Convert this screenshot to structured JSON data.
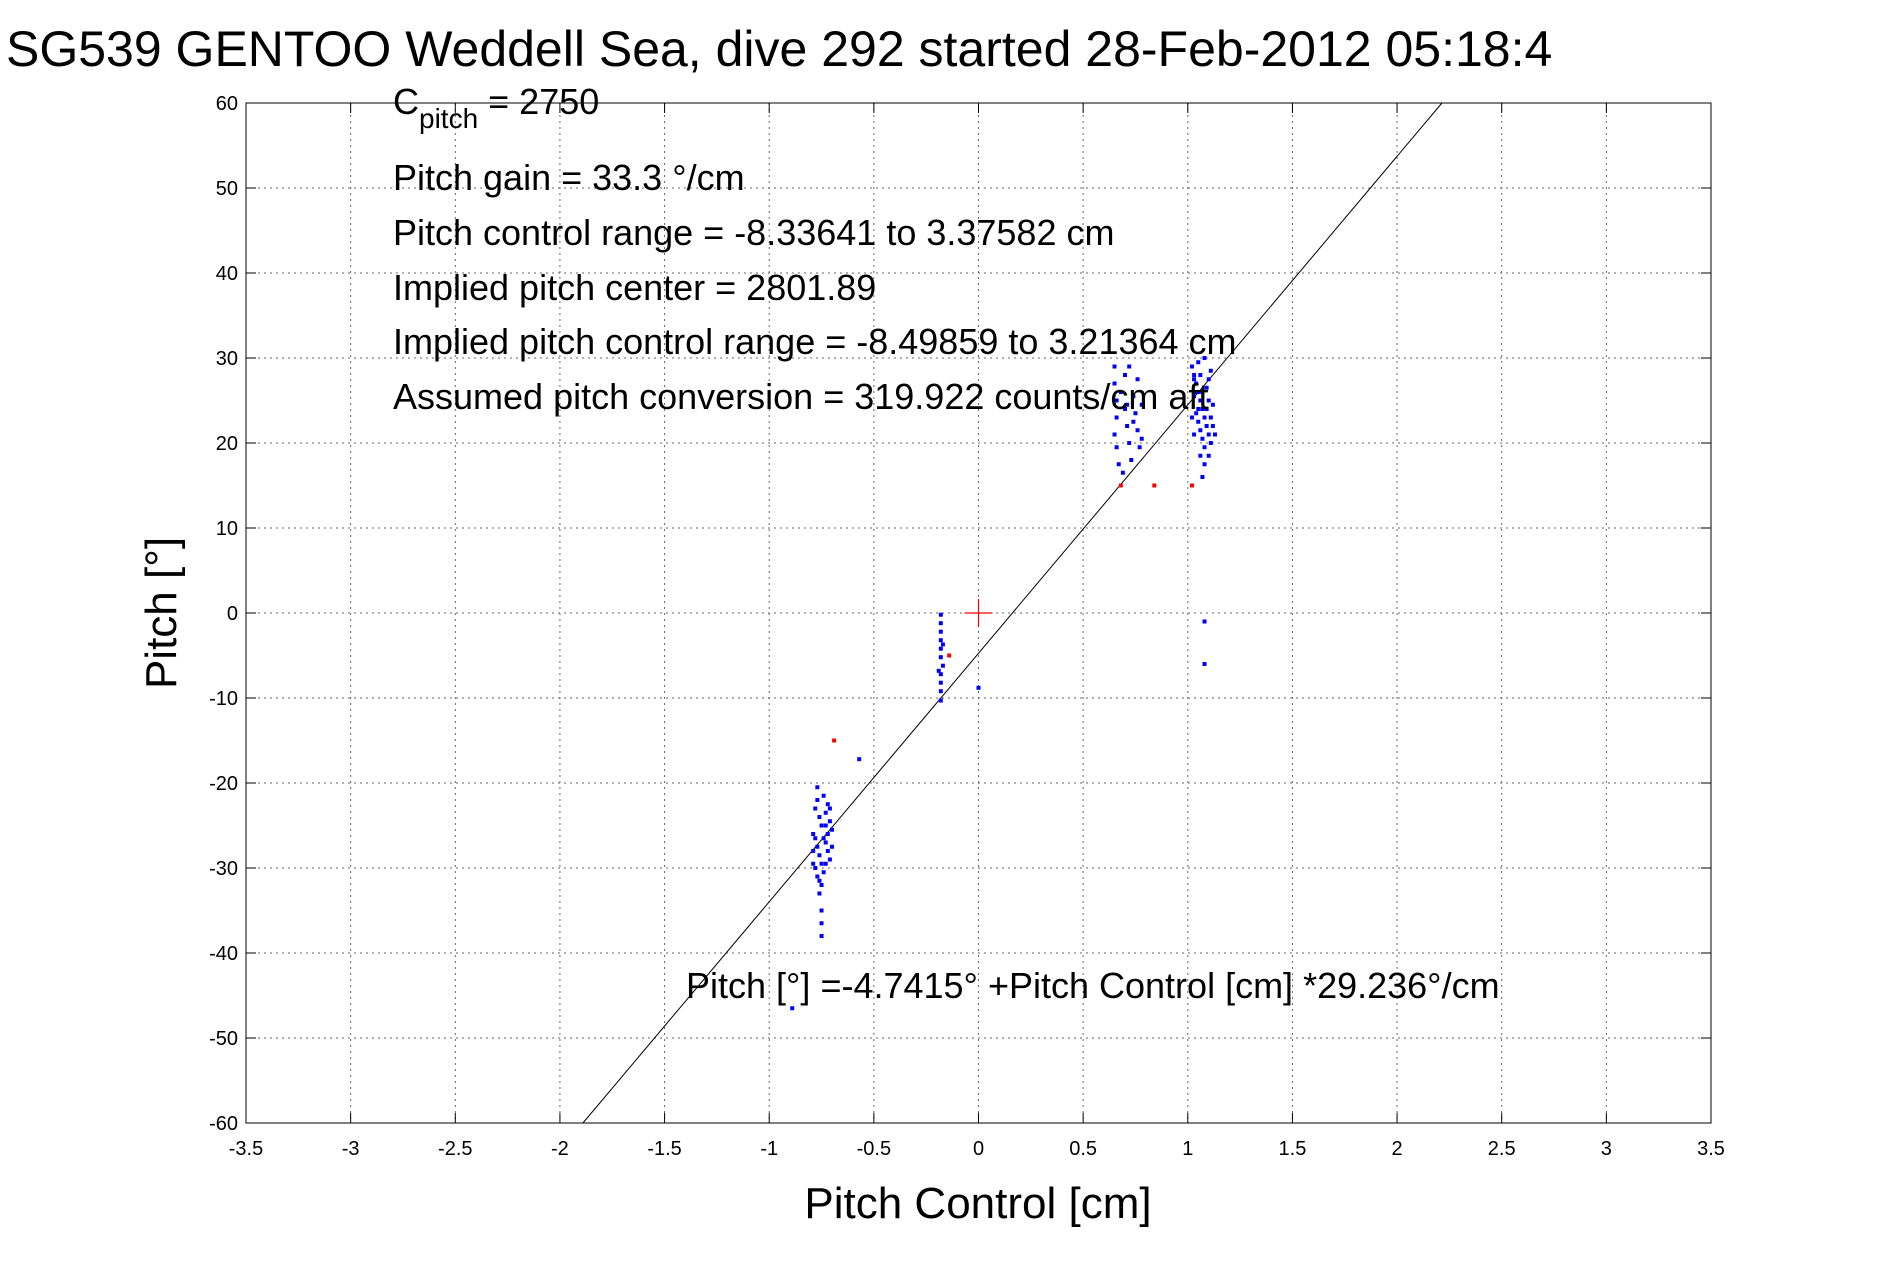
{
  "chart_data": {
    "type": "scatter",
    "title": "SG539 GENTOO Weddell Sea, dive 292 started 28-Feb-2012 05:18:4",
    "xlabel": "Pitch Control [cm]",
    "ylabel": "Pitch [°]",
    "xlim": [
      -3.5,
      3.5
    ],
    "ylim": [
      -60,
      60
    ],
    "grid": true,
    "xticks": [
      -3.5,
      -3,
      -2.5,
      -2,
      -1.5,
      -1,
      -0.5,
      0,
      0.5,
      1,
      1.5,
      2,
      2.5,
      3,
      3.5
    ],
    "yticks": [
      -60,
      -50,
      -40,
      -30,
      -20,
      -10,
      0,
      10,
      20,
      30,
      40,
      50,
      60
    ],
    "annotations": {
      "c_pitch_main": "C",
      "c_pitch_sub": "pitch",
      "c_pitch_value": " = 2750",
      "pitch_gain": "Pitch gain = 33.3 °/cm",
      "pitch_control_range": "Pitch control range = -8.33641 to 3.37582 cm",
      "implied_pitch_center": "Implied pitch center = 2801.89",
      "implied_pitch_control_range": "Implied pitch control range = -8.49859 to 3.21364 cm",
      "assumed_pitch_conversion": "Assumed pitch conversion = 319.922 counts/cm aft",
      "fit_equation": "Pitch [°] =-4.7415° +Pitch Control [cm] *29.236°/cm"
    },
    "fit_line": {
      "intercept": -4.7415,
      "slope": 29.236
    },
    "center_marker": {
      "x": 0,
      "y": 0
    },
    "series": [
      {
        "color": "#0000ff",
        "points": [
          [
            -0.77,
            -20.5
          ],
          [
            -0.77,
            -22
          ],
          [
            -0.78,
            -23
          ],
          [
            -0.76,
            -24
          ],
          [
            -0.75,
            -25
          ],
          [
            -0.74,
            -21.5
          ],
          [
            -0.73,
            -23.5
          ],
          [
            -0.72,
            -22.5
          ],
          [
            -0.71,
            -24.5
          ],
          [
            -0.72,
            -26
          ],
          [
            -0.78,
            -26.5
          ],
          [
            -0.77,
            -27.5
          ],
          [
            -0.76,
            -28.5
          ],
          [
            -0.75,
            -29.5
          ],
          [
            -0.74,
            -30.5
          ],
          [
            -0.73,
            -27
          ],
          [
            -0.72,
            -28
          ],
          [
            -0.71,
            -29
          ],
          [
            -0.7,
            -25.5
          ],
          [
            -0.7,
            -27.5
          ],
          [
            -0.78,
            -30
          ],
          [
            -0.77,
            -31
          ],
          [
            -0.76,
            -31.5
          ],
          [
            -0.75,
            -32
          ],
          [
            -0.79,
            -28
          ],
          [
            -0.79,
            -26
          ],
          [
            -0.79,
            -29.5
          ],
          [
            -0.74,
            -26.5
          ],
          [
            -0.73,
            -25
          ],
          [
            -0.73,
            -29.5
          ],
          [
            -0.75,
            -35
          ],
          [
            -0.75,
            -36.5
          ],
          [
            -0.75,
            -38
          ],
          [
            -0.76,
            -33
          ],
          [
            -0.71,
            -23
          ],
          [
            -0.57,
            -17.2
          ],
          [
            -0.89,
            -46.5
          ],
          [
            -0.18,
            -0.2
          ],
          [
            -0.18,
            -1.2
          ],
          [
            -0.18,
            -2.2
          ],
          [
            -0.18,
            -3.2
          ],
          [
            -0.18,
            -4.2
          ],
          [
            -0.18,
            -5.2
          ],
          [
            -0.17,
            -6.2
          ],
          [
            -0.18,
            -7.2
          ],
          [
            -0.18,
            -8.2
          ],
          [
            -0.18,
            -9.2
          ],
          [
            -0.18,
            -10.3
          ],
          [
            -0.19,
            -6.8
          ],
          [
            -0.17,
            -3.7
          ],
          [
            0.0,
            -8.8
          ],
          [
            0.65,
            29
          ],
          [
            0.65,
            27
          ],
          [
            0.66,
            25
          ],
          [
            0.66,
            23
          ],
          [
            0.65,
            21
          ],
          [
            0.66,
            19.5
          ],
          [
            0.67,
            17.5
          ],
          [
            0.68,
            26
          ],
          [
            0.7,
            24
          ],
          [
            0.71,
            22
          ],
          [
            0.72,
            20
          ],
          [
            0.73,
            18
          ],
          [
            0.74,
            25.5
          ],
          [
            0.75,
            23.5
          ],
          [
            0.76,
            21.5
          ],
          [
            0.77,
            19.5
          ],
          [
            0.78,
            24.5
          ],
          [
            0.76,
            27.5
          ],
          [
            0.72,
            29
          ],
          [
            0.69,
            16.5
          ],
          [
            0.7,
            28
          ],
          [
            0.74,
            22.5
          ],
          [
            0.78,
            20.5
          ],
          [
            0.71,
            24.5
          ],
          [
            1.02,
            29
          ],
          [
            1.03,
            28
          ],
          [
            1.04,
            27
          ],
          [
            1.05,
            26
          ],
          [
            1.06,
            25
          ],
          [
            1.07,
            24
          ],
          [
            1.08,
            23
          ],
          [
            1.09,
            22
          ],
          [
            1.1,
            21
          ],
          [
            1.11,
            20
          ],
          [
            1.03,
            25.5
          ],
          [
            1.04,
            23.5
          ],
          [
            1.05,
            22.5
          ],
          [
            1.06,
            21.5
          ],
          [
            1.07,
            20.5
          ],
          [
            1.08,
            19.5
          ],
          [
            1.09,
            26.5
          ],
          [
            1.1,
            27.5
          ],
          [
            1.11,
            28.5
          ],
          [
            1.12,
            24.5
          ],
          [
            1.02,
            23
          ],
          [
            1.03,
            21
          ],
          [
            1.05,
            24
          ],
          [
            1.07,
            26
          ],
          [
            1.09,
            24
          ],
          [
            1.11,
            23
          ],
          [
            1.06,
            28
          ],
          [
            1.08,
            30
          ],
          [
            1.1,
            25
          ],
          [
            1.04,
            26
          ],
          [
            1.06,
            18.5
          ],
          [
            1.08,
            17.5
          ],
          [
            1.07,
            16
          ],
          [
            1.12,
            22
          ],
          [
            1.13,
            21
          ],
          [
            1.03,
            27.5
          ],
          [
            1.05,
            29.5
          ],
          [
            1.1,
            18.5
          ],
          [
            1.08,
            -1
          ],
          [
            1.08,
            -6
          ]
        ]
      },
      {
        "color": "#ff0000",
        "points": [
          [
            -0.69,
            -15
          ],
          [
            -0.14,
            -5
          ],
          [
            0.68,
            15
          ],
          [
            0.84,
            15
          ],
          [
            1.02,
            15
          ]
        ]
      }
    ]
  }
}
